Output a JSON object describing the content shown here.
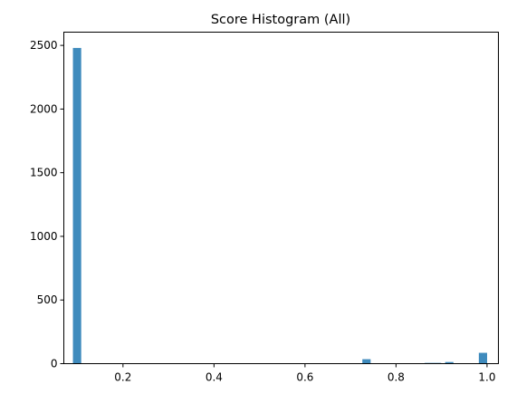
{
  "chart_data": {
    "type": "bar",
    "title": "Score Histogram (All)",
    "xlabel": "",
    "ylabel": "",
    "xlim": [
      0.07,
      1.025
    ],
    "ylim": [
      0,
      2604
    ],
    "xticks": [
      0.2,
      0.4,
      0.6,
      0.8,
      1.0
    ],
    "xtick_labels": [
      "0.2",
      "0.4",
      "0.6",
      "0.8",
      "1.0"
    ],
    "yticks": [
      0,
      500,
      1000,
      1500,
      2000,
      2500
    ],
    "ytick_labels": [
      "0",
      "500",
      "1000",
      "1500",
      "2000",
      "2500"
    ],
    "bin_width": 0.0182,
    "bins": [
      {
        "x0": 0.09,
        "value": 2480
      },
      {
        "x0": 0.726,
        "value": 35
      },
      {
        "x0": 0.863,
        "value": 6
      },
      {
        "x0": 0.881,
        "value": 6
      },
      {
        "x0": 0.908,
        "value": 13
      },
      {
        "x0": 0.982,
        "value": 85
      }
    ],
    "bar_color": "#3f8bbd",
    "grid": false
  }
}
